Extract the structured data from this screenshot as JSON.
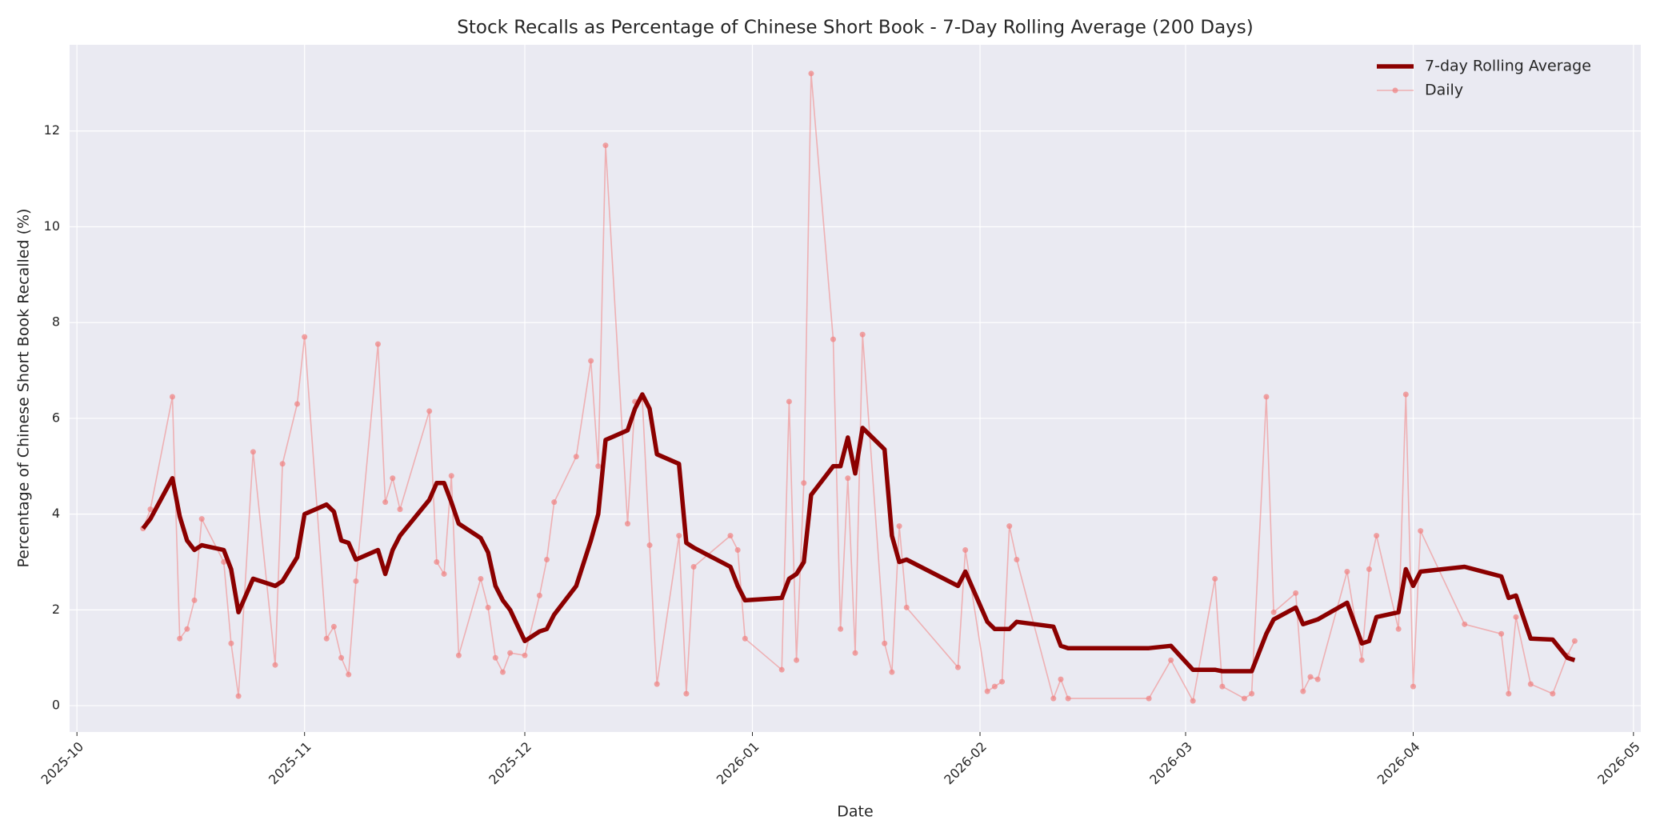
{
  "chart_data": {
    "type": "line",
    "title": "Stock Recalls as Percentage of Chinese Short Book - 7-Day Rolling Average (200 Days)",
    "xlabel": "Date",
    "ylabel": "Percentage of Chinese Short Book Recalled (%)",
    "x": [
      "2025-10-10",
      "2025-10-11",
      "2025-10-14",
      "2025-10-15",
      "2025-10-16",
      "2025-10-17",
      "2025-10-18",
      "2025-10-21",
      "2025-10-22",
      "2025-10-23",
      "2025-10-25",
      "2025-10-28",
      "2025-10-29",
      "2025-10-31",
      "2025-11-01",
      "2025-11-04",
      "2025-11-05",
      "2025-11-06",
      "2025-11-07",
      "2025-11-08",
      "2025-11-11",
      "2025-11-12",
      "2025-11-13",
      "2025-11-14",
      "2025-11-18",
      "2025-11-19",
      "2025-11-20",
      "2025-11-21",
      "2025-11-22",
      "2025-11-25",
      "2025-11-26",
      "2025-11-27",
      "2025-11-28",
      "2025-11-29",
      "2025-12-01",
      "2025-12-03",
      "2025-12-04",
      "2025-12-05",
      "2025-12-08",
      "2025-12-10",
      "2025-12-11",
      "2025-12-12",
      "2025-12-15",
      "2025-12-16",
      "2025-12-17",
      "2025-12-18",
      "2025-12-19",
      "2025-12-22",
      "2025-12-23",
      "2025-12-24",
      "2025-12-29",
      "2025-12-30",
      "2025-12-31",
      "2026-01-05",
      "2026-01-06",
      "2026-01-07",
      "2026-01-08",
      "2026-01-09",
      "2026-01-12",
      "2026-01-13",
      "2026-01-14",
      "2026-01-15",
      "2026-01-16",
      "2026-01-19",
      "2026-01-20",
      "2026-01-21",
      "2026-01-22",
      "2026-01-29",
      "2026-01-30",
      "2026-02-02",
      "2026-02-03",
      "2026-02-04",
      "2026-02-05",
      "2026-02-06",
      "2026-02-11",
      "2026-02-12",
      "2026-02-13",
      "2026-02-24",
      "2026-02-27",
      "2026-03-02",
      "2026-03-05",
      "2026-03-06",
      "2026-03-09",
      "2026-03-10",
      "2026-03-12",
      "2026-03-13",
      "2026-03-16",
      "2026-03-17",
      "2026-03-18",
      "2026-03-19",
      "2026-03-23",
      "2026-03-25",
      "2026-03-26",
      "2026-03-27",
      "2026-03-30",
      "2026-03-31",
      "2026-04-01",
      "2026-04-02",
      "2026-04-08",
      "2026-04-13",
      "2026-04-14",
      "2026-04-15",
      "2026-04-17",
      "2026-04-20",
      "2026-04-22",
      "2026-04-23"
    ],
    "series": [
      {
        "name": "7-day Rolling Average",
        "color": "#8b0000",
        "values": [
          3.7,
          3.9,
          4.75,
          3.95,
          3.45,
          3.25,
          3.35,
          3.25,
          2.85,
          1.95,
          2.65,
          2.5,
          2.6,
          3.1,
          4.0,
          4.2,
          4.05,
          3.45,
          3.4,
          3.05,
          3.25,
          2.75,
          3.25,
          3.55,
          4.3,
          4.65,
          4.65,
          4.25,
          3.8,
          3.5,
          3.2,
          2.5,
          2.2,
          2.0,
          1.35,
          1.55,
          1.6,
          1.9,
          2.5,
          3.45,
          4.0,
          5.55,
          5.75,
          6.2,
          6.5,
          6.2,
          5.25,
          5.05,
          3.4,
          3.3,
          2.9,
          2.5,
          2.2,
          2.25,
          2.65,
          2.75,
          3.0,
          4.4,
          5.0,
          5.0,
          5.6,
          4.85,
          5.8,
          5.35,
          3.55,
          3.0,
          3.05,
          2.5,
          2.8,
          1.75,
          1.6,
          1.6,
          1.6,
          1.75,
          1.65,
          1.25,
          1.2,
          1.2,
          1.25,
          0.75,
          0.75,
          0.72,
          0.72,
          0.72,
          1.5,
          1.8,
          2.05,
          1.7,
          1.75,
          1.8,
          2.15,
          1.3,
          1.35,
          1.85,
          1.95,
          2.85,
          2.5,
          2.8,
          2.9,
          2.7,
          2.25,
          2.3,
          1.4,
          1.38,
          1.0,
          0.95
        ]
      },
      {
        "name": "Daily",
        "color": "#f08080",
        "values": [
          3.7,
          4.1,
          6.45,
          1.4,
          1.6,
          2.2,
          3.9,
          3.0,
          1.3,
          0.2,
          5.3,
          0.85,
          5.05,
          6.3,
          7.7,
          1.4,
          1.65,
          1.0,
          0.65,
          2.6,
          7.55,
          4.25,
          4.75,
          4.1,
          6.15,
          3.0,
          2.75,
          4.8,
          1.05,
          2.65,
          2.05,
          1.0,
          0.7,
          1.1,
          1.05,
          2.3,
          3.05,
          4.25,
          5.2,
          7.2,
          5.0,
          11.7,
          3.8,
          6.35,
          6.4,
          3.35,
          0.45,
          3.55,
          0.25,
          2.9,
          3.55,
          3.25,
          1.4,
          0.75,
          6.35,
          0.95,
          4.65,
          13.2,
          7.65,
          1.6,
          4.75,
          1.1,
          7.75,
          1.3,
          0.7,
          3.75,
          2.05,
          0.8,
          3.25,
          0.3,
          0.4,
          0.5,
          3.75,
          3.05,
          0.15,
          0.55,
          0.15,
          0.15,
          0.95,
          0.1,
          2.65,
          0.4,
          0.15,
          0.25,
          6.45,
          1.95,
          2.35,
          0.3,
          0.6,
          0.55,
          2.8,
          0.95,
          2.85,
          3.55,
          1.6,
          6.5,
          0.4,
          3.65,
          1.7,
          1.5,
          0.25,
          1.85,
          0.45,
          0.25,
          1.05,
          1.35
        ]
      }
    ],
    "xlim": [
      "2025-09-30",
      "2026-05-02"
    ],
    "xticks": [
      {
        "value": "2025-10-01",
        "label": "2025-10"
      },
      {
        "value": "2025-11-01",
        "label": "2025-11"
      },
      {
        "value": "2025-12-01",
        "label": "2025-12"
      },
      {
        "value": "2026-01-01",
        "label": "2026-01"
      },
      {
        "value": "2026-02-01",
        "label": "2026-02"
      },
      {
        "value": "2026-03-01",
        "label": "2026-03"
      },
      {
        "value": "2026-04-01",
        "label": "2026-04"
      },
      {
        "value": "2026-05-01",
        "label": "2026-05"
      }
    ],
    "ylim": [
      -0.55,
      13.8
    ],
    "yticks": [
      0,
      2,
      4,
      6,
      8,
      10,
      12
    ],
    "grid": true,
    "legend": "upper right"
  }
}
